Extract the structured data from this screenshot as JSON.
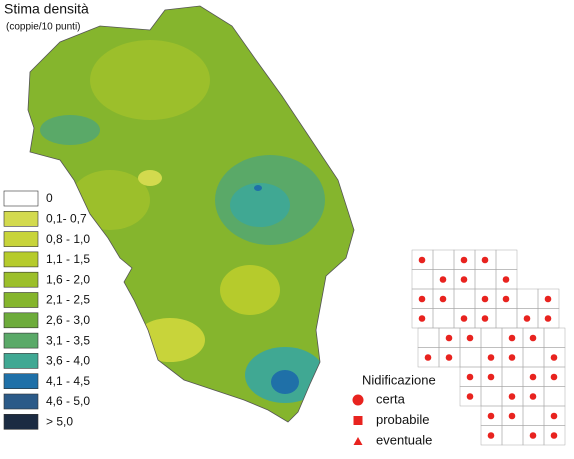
{
  "title": "Stima densità",
  "subtitle": "(coppie/10 punti)",
  "legend": [
    {
      "label": "0",
      "color": "#ffffff"
    },
    {
      "label": "0,1- 0,7",
      "color": "#d3da4e"
    },
    {
      "label": "0,8 - 1,0",
      "color": "#c8d43a"
    },
    {
      "label": "1,1 - 1,5",
      "color": "#b6cb2c"
    },
    {
      "label": "1,6 - 2,0",
      "color": "#9cbf2b"
    },
    {
      "label": "2,1 - 2,5",
      "color": "#85b52d"
    },
    {
      "label": "2,6 - 3,0",
      "color": "#6dab3b"
    },
    {
      "label": "3,1 - 3,5",
      "color": "#5aa968"
    },
    {
      "label": "3,6 - 4,0",
      "color": "#40a893"
    },
    {
      "label": "4,1 - 4,5",
      "color": "#1f70a8"
    },
    {
      "label": "4,6 - 5,0",
      "color": "#2b5a88"
    },
    {
      "label": "> 5,0",
      "color": "#1b2b42"
    }
  ],
  "nesting": {
    "title": "Nidificazione",
    "items": [
      {
        "label": "certa",
        "shape": "circle"
      },
      {
        "label": "probabile",
        "shape": "square"
      },
      {
        "label": "eventuale",
        "shape": "triangle"
      }
    ],
    "color": "#e8231f"
  }
}
